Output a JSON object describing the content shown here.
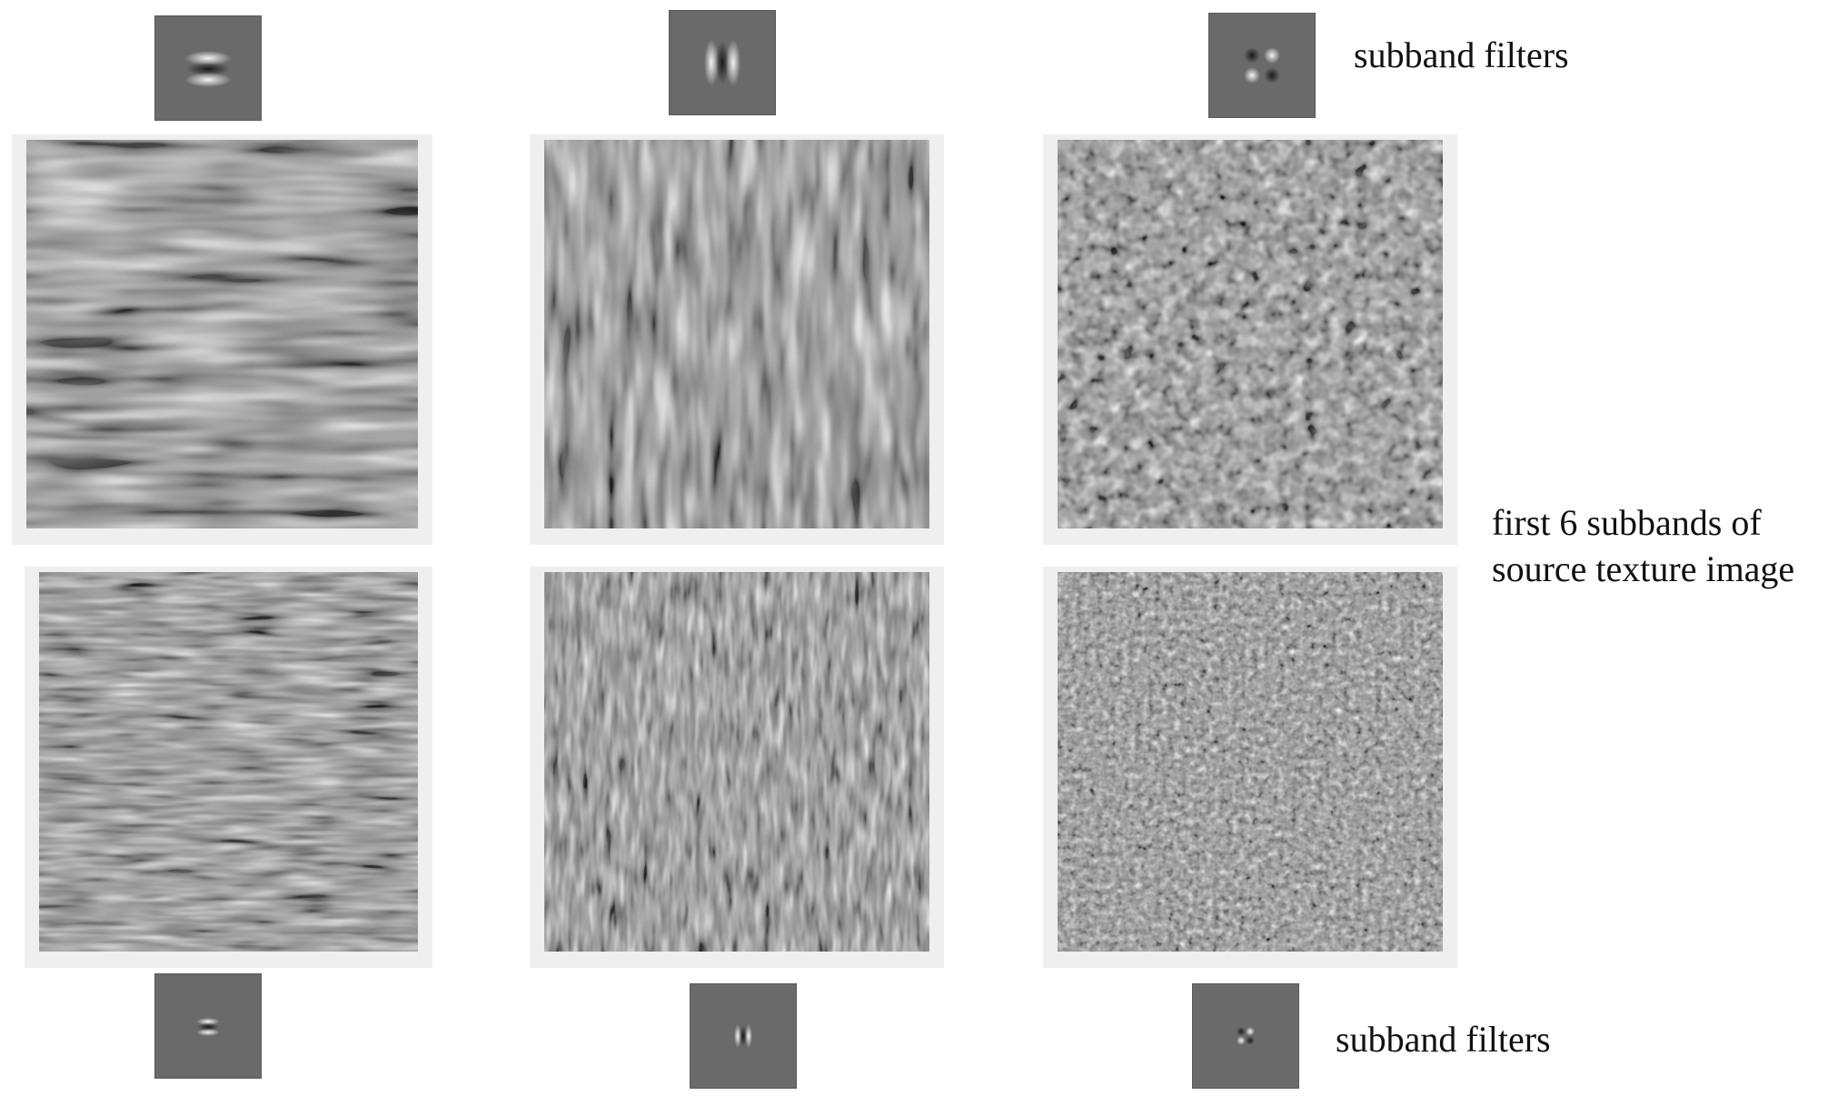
{
  "labels": {
    "top_filters": "subband filters",
    "bottom_filters": "subband filters",
    "description_line1": "first 6 subbands of",
    "description_line2": "source texture image"
  },
  "colors": {
    "filter_background": "#6a6a6a",
    "panel_frame": "#efefef",
    "texture_mid_gray": "#8a8a8a"
  },
  "panels": [
    {
      "name": "subband-1",
      "orientation": "horizontal",
      "scale": "coarse"
    },
    {
      "name": "subband-2",
      "orientation": "vertical",
      "scale": "coarse"
    },
    {
      "name": "subband-3",
      "orientation": "diagonal",
      "scale": "coarse"
    },
    {
      "name": "subband-4",
      "orientation": "horizontal",
      "scale": "fine"
    },
    {
      "name": "subband-5",
      "orientation": "vertical",
      "scale": "fine"
    },
    {
      "name": "subband-6",
      "orientation": "diagonal",
      "scale": "fine"
    }
  ]
}
